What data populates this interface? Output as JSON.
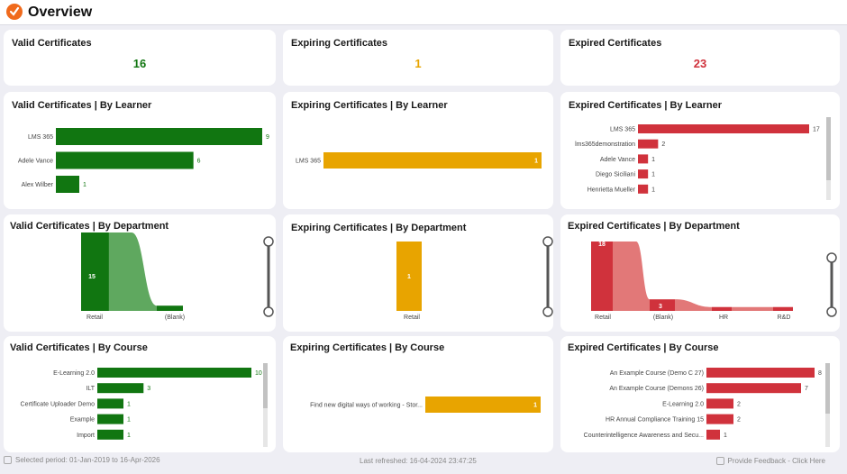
{
  "header": {
    "title": "Overview"
  },
  "colors": {
    "valid": "#117611",
    "valid_light": "#5fa85f",
    "expiring": "#e8a400",
    "expired": "#d0323c",
    "expired_light": "#e27878"
  },
  "kpis": [
    {
      "title": "Valid Certificates",
      "value": "16"
    },
    {
      "title": "Expiring Certificates",
      "value": "1"
    },
    {
      "title": "Expired Certificates",
      "value": "23"
    }
  ],
  "titles": {
    "valid_learner": "Valid Certificates | By Learner",
    "expiring_learner": "Expiring Certificates | By Learner",
    "expired_learner": "Expired Certificates | By Learner",
    "valid_dept": "Valid Certificates | By Department",
    "expiring_dept": "Expiring Certificates | By Department",
    "expired_dept": "Expired Certificates | By Department",
    "valid_course": "Valid Certificates | By Course",
    "expiring_course": "Expiring Certificates | By Course",
    "expired_course": "Expired Certificates | By Course"
  },
  "chart_data": [
    {
      "type": "bar",
      "orientation": "horizontal",
      "title": "Valid Certificates | By Learner",
      "categories": [
        "LMS 365",
        "Adele Vance",
        "Alex Wilber"
      ],
      "values": [
        9,
        6,
        1
      ]
    },
    {
      "type": "bar",
      "orientation": "horizontal",
      "title": "Expiring Certificates | By Learner",
      "categories": [
        "LMS 365"
      ],
      "values": [
        1
      ]
    },
    {
      "type": "bar",
      "orientation": "horizontal",
      "title": "Expired Certificates | By Learner",
      "categories": [
        "LMS 365",
        "lms365demonstration",
        "Adele Vance",
        "Diego Siciliani",
        "Henrietta Mueller"
      ],
      "values": [
        17,
        2,
        1,
        1,
        1
      ]
    },
    {
      "type": "bar",
      "title": "Valid Certificates | By Department",
      "categories": [
        "Retail",
        "(Blank)"
      ],
      "values": [
        15,
        1
      ]
    },
    {
      "type": "bar",
      "title": "Expiring Certificates | By Department",
      "categories": [
        "Retail"
      ],
      "values": [
        1
      ]
    },
    {
      "type": "bar",
      "title": "Expired Certificates | By Department",
      "categories": [
        "Retail",
        "(Blank)",
        "HR",
        "R&D"
      ],
      "values": [
        18,
        3,
        1,
        1
      ]
    },
    {
      "type": "bar",
      "orientation": "horizontal",
      "title": "Valid Certificates | By Course",
      "categories": [
        "E-Learning 2.0",
        "ILT",
        "Certificate Uploader Demo",
        "Example",
        "Import"
      ],
      "values": [
        10,
        3,
        1,
        1,
        1
      ]
    },
    {
      "type": "bar",
      "orientation": "horizontal",
      "title": "Expiring Certificates | By Course",
      "categories": [
        "Find new digital ways of working - Stor..."
      ],
      "values": [
        1
      ]
    },
    {
      "type": "bar",
      "orientation": "horizontal",
      "title": "Expired Certificates | By Course",
      "categories": [
        "An Example Course (Demo C 27)",
        "An Example Course (Demons 26)",
        "E-Learning 2.0",
        "HR Annual Compliance Training 15",
        "Counterintelligence Awareness and Secu..."
      ],
      "values": [
        8,
        7,
        2,
        2,
        1
      ]
    }
  ],
  "footer": {
    "period": "Selected period: 01-Jan-2019 to 16-Apr-2026",
    "refreshed": "Last refreshed: 16-04-2024 23:47:25",
    "feedback": "Provide Feedback - Click Here"
  }
}
